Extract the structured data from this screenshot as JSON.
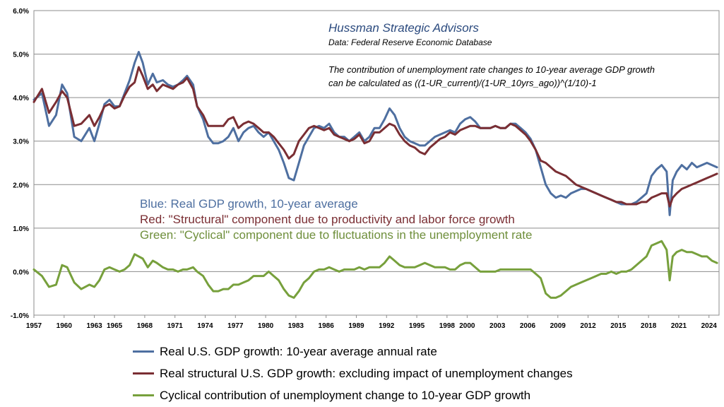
{
  "chart_data": {
    "type": "line",
    "title": "Hussman Strategic Advisors",
    "subtitle": "Data: Federal Reserve Economic Database",
    "annotation_lines": [
      "The contribution of unemployment rate changes to 10-year average GDP growth",
      "can be calculated as ((1-UR_current)/(1-UR_10yrs_ago))^(1/10)-1"
    ],
    "color_key": [
      {
        "text": "Blue: Real GDP growth, 10-year average",
        "color": "#4e6fa0"
      },
      {
        "text": "Red: \"Structural\" component due to productivity and labor force growth",
        "color": "#7a2e33"
      },
      {
        "text": "Green: \"Cyclical\" component due to fluctuations in the unemployment rate",
        "color": "#6f8f3c"
      }
    ],
    "ylim": [
      -1.0,
      6.0
    ],
    "yticks": [
      -1.0,
      0.0,
      1.0,
      2.0,
      3.0,
      4.0,
      5.0,
      6.0
    ],
    "ytick_labels": [
      "-1.0%",
      "0.0%",
      "1.0%",
      "2.0%",
      "3.0%",
      "4.0%",
      "5.0%",
      "6.0%"
    ],
    "xlim": [
      1957,
      2025
    ],
    "xtick_labels": [
      "1957",
      "1960",
      "1963",
      "1965",
      "1968",
      "1971",
      "1974",
      "1977",
      "1980",
      "1983",
      "1986",
      "1989",
      "1992",
      "1995",
      "1998",
      "2000",
      "2003",
      "2006",
      "2009",
      "2012",
      "2015",
      "2018",
      "2021",
      "2024"
    ],
    "xtick_values": [
      1957,
      1960,
      1963,
      1965,
      1968,
      1971,
      1974,
      1977,
      1980,
      1983,
      1986,
      1989,
      1992,
      1995,
      1998,
      2000,
      2003,
      2006,
      2009,
      2012,
      2015,
      2018,
      2021,
      2024
    ],
    "grid": "horizontal",
    "legend_position": "bottom",
    "series": [
      {
        "name": "Real U.S. GDP growth: 10-year average annual rate",
        "color": "#4e6fa0",
        "x": [
          1957,
          1957.8,
          1958.5,
          1959.2,
          1959.8,
          1960.3,
          1961,
          1961.7,
          1962.5,
          1963,
          1963.5,
          1964,
          1964.5,
          1965,
          1965.5,
          1966,
          1966.5,
          1967,
          1967.4,
          1967.8,
          1968.3,
          1968.8,
          1969.2,
          1969.8,
          1970.3,
          1970.8,
          1971.3,
          1971.8,
          1972.2,
          1972.8,
          1973.2,
          1973.8,
          1974.3,
          1974.8,
          1975.3,
          1975.8,
          1976.3,
          1976.8,
          1977.3,
          1977.8,
          1978.3,
          1978.8,
          1979.3,
          1979.8,
          1980.3,
          1980.8,
          1981.3,
          1981.8,
          1982.3,
          1982.8,
          1983.3,
          1983.8,
          1984.3,
          1984.8,
          1985.3,
          1985.8,
          1986.3,
          1986.8,
          1987.3,
          1987.8,
          1988.3,
          1988.8,
          1989.3,
          1989.8,
          1990.3,
          1990.8,
          1991.3,
          1991.8,
          1992.3,
          1992.8,
          1993.3,
          1993.8,
          1994.3,
          1994.8,
          1995.3,
          1995.8,
          1996.3,
          1996.8,
          1997.3,
          1997.8,
          1998.3,
          1998.8,
          1999.3,
          1999.8,
          2000.3,
          2000.8,
          2001.3,
          2001.8,
          2002.3,
          2002.8,
          2003.3,
          2003.8,
          2004.3,
          2004.8,
          2005.3,
          2005.8,
          2006.3,
          2006.8,
          2007.3,
          2007.8,
          2008.3,
          2008.8,
          2009.3,
          2009.8,
          2010.3,
          2010.8,
          2011.3,
          2011.8,
          2012.3,
          2012.8,
          2013.3,
          2013.8,
          2014.3,
          2014.8,
          2015.3,
          2015.8,
          2016.3,
          2016.8,
          2017.3,
          2017.8,
          2018.3,
          2018.8,
          2019.3,
          2019.8,
          2020.1,
          2020.4,
          2020.8,
          2021.3,
          2021.8,
          2022.3,
          2022.8,
          2023.3,
          2023.8,
          2024.3,
          2024.8
        ],
        "values": [
          3.95,
          4.1,
          3.35,
          3.6,
          4.3,
          4.1,
          3.1,
          3.0,
          3.3,
          3.0,
          3.4,
          3.85,
          3.95,
          3.8,
          3.8,
          4.1,
          4.4,
          4.8,
          5.05,
          4.8,
          4.3,
          4.55,
          4.35,
          4.4,
          4.3,
          4.25,
          4.3,
          4.4,
          4.5,
          4.3,
          3.8,
          3.5,
          3.1,
          2.95,
          2.95,
          3.0,
          3.1,
          3.3,
          3.0,
          3.2,
          3.3,
          3.35,
          3.2,
          3.1,
          3.2,
          3.0,
          2.8,
          2.5,
          2.15,
          2.1,
          2.5,
          2.9,
          3.1,
          3.3,
          3.35,
          3.3,
          3.4,
          3.2,
          3.1,
          3.1,
          3.0,
          3.1,
          3.2,
          3.0,
          3.1,
          3.3,
          3.3,
          3.5,
          3.75,
          3.6,
          3.3,
          3.1,
          3.0,
          2.95,
          2.9,
          2.9,
          3.0,
          3.1,
          3.15,
          3.2,
          3.25,
          3.2,
          3.4,
          3.5,
          3.55,
          3.45,
          3.3,
          3.3,
          3.3,
          3.35,
          3.3,
          3.3,
          3.4,
          3.4,
          3.3,
          3.2,
          3.05,
          2.8,
          2.4,
          2.0,
          1.8,
          1.7,
          1.75,
          1.7,
          1.8,
          1.85,
          1.9,
          1.9,
          1.85,
          1.8,
          1.75,
          1.7,
          1.65,
          1.6,
          1.55,
          1.55,
          1.55,
          1.6,
          1.7,
          1.8,
          2.2,
          2.35,
          2.45,
          2.3,
          1.3,
          2.1,
          2.3,
          2.45,
          2.35,
          2.5,
          2.4,
          2.45,
          2.5,
          2.45,
          2.4
        ]
      },
      {
        "name": "Real structural U.S. GDP growth: excluding impact of unemployment changes",
        "color": "#7a2e33",
        "x": [
          1957,
          1957.8,
          1958.5,
          1959.2,
          1959.8,
          1960.3,
          1961,
          1961.7,
          1962.5,
          1963,
          1963.5,
          1964,
          1964.5,
          1965,
          1965.5,
          1966,
          1966.5,
          1967,
          1967.4,
          1967.8,
          1968.3,
          1968.8,
          1969.2,
          1969.8,
          1970.3,
          1970.8,
          1971.3,
          1971.8,
          1972.2,
          1972.8,
          1973.2,
          1973.8,
          1974.3,
          1974.8,
          1975.3,
          1975.8,
          1976.3,
          1976.8,
          1977.3,
          1977.8,
          1978.3,
          1978.8,
          1979.3,
          1979.8,
          1980.3,
          1980.8,
          1981.3,
          1981.8,
          1982.3,
          1982.8,
          1983.3,
          1983.8,
          1984.3,
          1984.8,
          1985.3,
          1985.8,
          1986.3,
          1986.8,
          1987.3,
          1987.8,
          1988.3,
          1988.8,
          1989.3,
          1989.8,
          1990.3,
          1990.8,
          1991.3,
          1991.8,
          1992.3,
          1992.8,
          1993.3,
          1993.8,
          1994.3,
          1994.8,
          1995.3,
          1995.8,
          1996.3,
          1996.8,
          1997.3,
          1997.8,
          1998.3,
          1998.8,
          1999.3,
          1999.8,
          2000.3,
          2000.8,
          2001.3,
          2001.8,
          2002.3,
          2002.8,
          2003.3,
          2003.8,
          2004.3,
          2004.8,
          2005.3,
          2005.8,
          2006.3,
          2006.8,
          2007.3,
          2007.8,
          2008.3,
          2008.8,
          2009.3,
          2009.8,
          2010.3,
          2010.8,
          2011.3,
          2011.8,
          2012.3,
          2012.8,
          2013.3,
          2013.8,
          2014.3,
          2014.8,
          2015.3,
          2015.8,
          2016.3,
          2016.8,
          2017.3,
          2017.8,
          2018.3,
          2018.8,
          2019.3,
          2019.8,
          2020.1,
          2020.4,
          2020.8,
          2021.3,
          2021.8,
          2022.3,
          2022.8,
          2023.3,
          2023.8,
          2024.3,
          2024.8
        ],
        "values": [
          3.9,
          4.2,
          3.65,
          3.9,
          4.15,
          4.0,
          3.35,
          3.4,
          3.6,
          3.35,
          3.55,
          3.8,
          3.85,
          3.75,
          3.8,
          4.05,
          4.25,
          4.35,
          4.7,
          4.5,
          4.2,
          4.3,
          4.15,
          4.3,
          4.25,
          4.2,
          4.3,
          4.35,
          4.45,
          4.2,
          3.8,
          3.6,
          3.35,
          3.35,
          3.35,
          3.35,
          3.5,
          3.55,
          3.3,
          3.4,
          3.45,
          3.4,
          3.3,
          3.2,
          3.2,
          3.1,
          2.95,
          2.8,
          2.6,
          2.7,
          3.0,
          3.15,
          3.3,
          3.35,
          3.3,
          3.25,
          3.3,
          3.15,
          3.1,
          3.05,
          3.0,
          3.05,
          3.15,
          2.95,
          3.0,
          3.2,
          3.2,
          3.3,
          3.4,
          3.35,
          3.15,
          3.0,
          2.9,
          2.85,
          2.75,
          2.7,
          2.85,
          2.95,
          3.05,
          3.1,
          3.2,
          3.15,
          3.25,
          3.3,
          3.35,
          3.35,
          3.3,
          3.3,
          3.3,
          3.35,
          3.3,
          3.3,
          3.4,
          3.35,
          3.25,
          3.15,
          3.0,
          2.8,
          2.55,
          2.5,
          2.4,
          2.3,
          2.25,
          2.2,
          2.1,
          2.0,
          1.95,
          1.9,
          1.85,
          1.8,
          1.75,
          1.7,
          1.65,
          1.6,
          1.6,
          1.55,
          1.55,
          1.55,
          1.6,
          1.6,
          1.7,
          1.75,
          1.8,
          1.8,
          1.5,
          1.7,
          1.8,
          1.9,
          1.95,
          2.0,
          2.05,
          2.1,
          2.15,
          2.2,
          2.25
        ]
      },
      {
        "name": "Cyclical contribution of unemployment change to 10-year GDP growth",
        "color": "#77a03c",
        "x": [
          1957,
          1957.8,
          1958.5,
          1959.2,
          1959.8,
          1960.3,
          1961,
          1961.7,
          1962.5,
          1963,
          1963.5,
          1964,
          1964.5,
          1965,
          1965.5,
          1966,
          1966.5,
          1967,
          1967.4,
          1967.8,
          1968.3,
          1968.8,
          1969.2,
          1969.8,
          1970.3,
          1970.8,
          1971.3,
          1971.8,
          1972.2,
          1972.8,
          1973.2,
          1973.8,
          1974.3,
          1974.8,
          1975.3,
          1975.8,
          1976.3,
          1976.8,
          1977.3,
          1977.8,
          1978.3,
          1978.8,
          1979.3,
          1979.8,
          1980.3,
          1980.8,
          1981.3,
          1981.8,
          1982.3,
          1982.8,
          1983.3,
          1983.8,
          1984.3,
          1984.8,
          1985.3,
          1985.8,
          1986.3,
          1986.8,
          1987.3,
          1987.8,
          1988.3,
          1988.8,
          1989.3,
          1989.8,
          1990.3,
          1990.8,
          1991.3,
          1991.8,
          1992.3,
          1992.8,
          1993.3,
          1993.8,
          1994.3,
          1994.8,
          1995.3,
          1995.8,
          1996.3,
          1996.8,
          1997.3,
          1997.8,
          1998.3,
          1998.8,
          1999.3,
          1999.8,
          2000.3,
          2000.8,
          2001.3,
          2001.8,
          2002.3,
          2002.8,
          2003.3,
          2003.8,
          2004.3,
          2004.8,
          2005.3,
          2005.8,
          2006.3,
          2006.8,
          2007.3,
          2007.8,
          2008.3,
          2008.8,
          2009.3,
          2009.8,
          2010.3,
          2010.8,
          2011.3,
          2011.8,
          2012.3,
          2012.8,
          2013.3,
          2013.8,
          2014.3,
          2014.8,
          2015.3,
          2015.8,
          2016.3,
          2016.8,
          2017.3,
          2017.8,
          2018.3,
          2018.8,
          2019.3,
          2019.8,
          2020.1,
          2020.4,
          2020.8,
          2021.3,
          2021.8,
          2022.3,
          2022.8,
          2023.3,
          2023.8,
          2024.3,
          2024.8
        ],
        "values": [
          0.05,
          -0.1,
          -0.35,
          -0.3,
          0.15,
          0.1,
          -0.25,
          -0.4,
          -0.3,
          -0.35,
          -0.2,
          0.05,
          0.1,
          0.05,
          0.0,
          0.05,
          0.15,
          0.4,
          0.35,
          0.3,
          0.1,
          0.25,
          0.2,
          0.1,
          0.05,
          0.05,
          0.0,
          0.05,
          0.05,
          0.1,
          0.0,
          -0.1,
          -0.3,
          -0.45,
          -0.45,
          -0.4,
          -0.4,
          -0.3,
          -0.3,
          -0.25,
          -0.2,
          -0.1,
          -0.1,
          -0.1,
          0.0,
          -0.1,
          -0.2,
          -0.4,
          -0.55,
          -0.6,
          -0.45,
          -0.25,
          -0.15,
          0.0,
          0.05,
          0.05,
          0.1,
          0.05,
          0.0,
          0.05,
          0.05,
          0.05,
          0.1,
          0.05,
          0.1,
          0.1,
          0.1,
          0.2,
          0.35,
          0.25,
          0.15,
          0.1,
          0.1,
          0.1,
          0.15,
          0.2,
          0.15,
          0.1,
          0.1,
          0.1,
          0.05,
          0.05,
          0.15,
          0.2,
          0.2,
          0.1,
          0.0,
          0.0,
          0.0,
          0.0,
          0.05,
          0.05,
          0.05,
          0.05,
          0.05,
          0.05,
          0.05,
          -0.05,
          -0.15,
          -0.5,
          -0.6,
          -0.6,
          -0.55,
          -0.45,
          -0.35,
          -0.3,
          -0.25,
          -0.2,
          -0.15,
          -0.1,
          -0.05,
          -0.05,
          0.0,
          -0.05,
          0.0,
          0.0,
          0.05,
          0.15,
          0.25,
          0.35,
          0.6,
          0.65,
          0.7,
          0.5,
          -0.2,
          0.35,
          0.45,
          0.5,
          0.45,
          0.45,
          0.4,
          0.35,
          0.35,
          0.25,
          0.2
        ]
      }
    ]
  }
}
